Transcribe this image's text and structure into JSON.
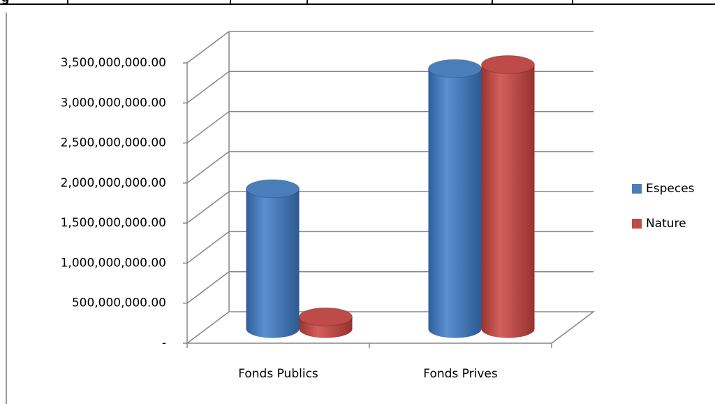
{
  "page_fragment": "g",
  "chart_data": {
    "type": "bar3d",
    "categories": [
      "Fonds Publics",
      "Fonds Prives"
    ],
    "series": [
      {
        "name": "Especes",
        "color": "#4a7ebb",
        "values": [
          1750000000,
          3250000000
        ]
      },
      {
        "name": "Nature",
        "color": "#be4b48",
        "values": [
          150000000,
          3300000000
        ]
      }
    ],
    "ylim": [
      0,
      3500000000
    ],
    "yticks": [
      {
        "value": 0,
        "label": "-"
      },
      {
        "value": 500000000,
        "label": "500,000,000.00"
      },
      {
        "value": 1000000000,
        "label": "1,000,000,000.00"
      },
      {
        "value": 1500000000,
        "label": "1,500,000,000.00"
      },
      {
        "value": 2000000000,
        "label": "2,000,000,000.00"
      },
      {
        "value": 2500000000,
        "label": "2,500,000,000.00"
      },
      {
        "value": 3000000000,
        "label": "3,000,000,000.00"
      },
      {
        "value": 3500000000,
        "label": "3,500,000,000.00"
      }
    ],
    "grid": true,
    "legend": "right"
  }
}
